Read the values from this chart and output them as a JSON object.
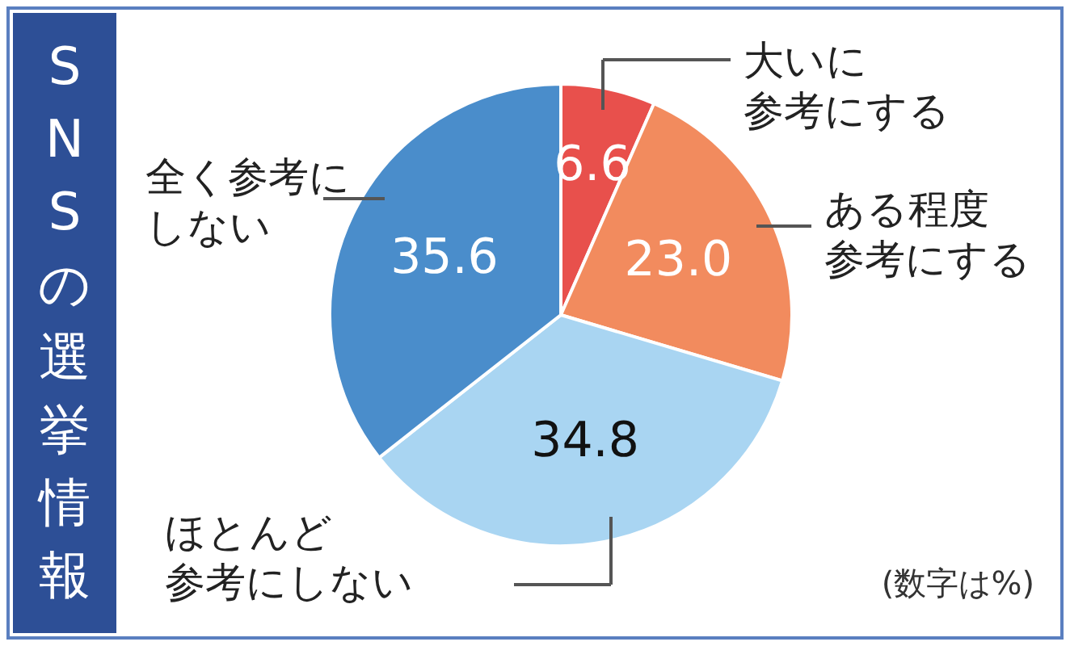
{
  "chart_data": {
    "type": "pie",
    "title": "SNSの選挙情報",
    "categories": [
      "大いに参考にする",
      "ある程度参考にする",
      "ほとんど参考にしない",
      "全く参考にしない"
    ],
    "values": [
      6.6,
      23.0,
      34.8,
      35.6
    ],
    "colors": [
      "#e8504c",
      "#f28b5e",
      "#a9d5f2",
      "#4a8dcb"
    ],
    "value_labels": [
      "6.6",
      "23.0",
      "34.8",
      "35.6"
    ],
    "annotations": [
      "(数字は%)"
    ]
  }
}
